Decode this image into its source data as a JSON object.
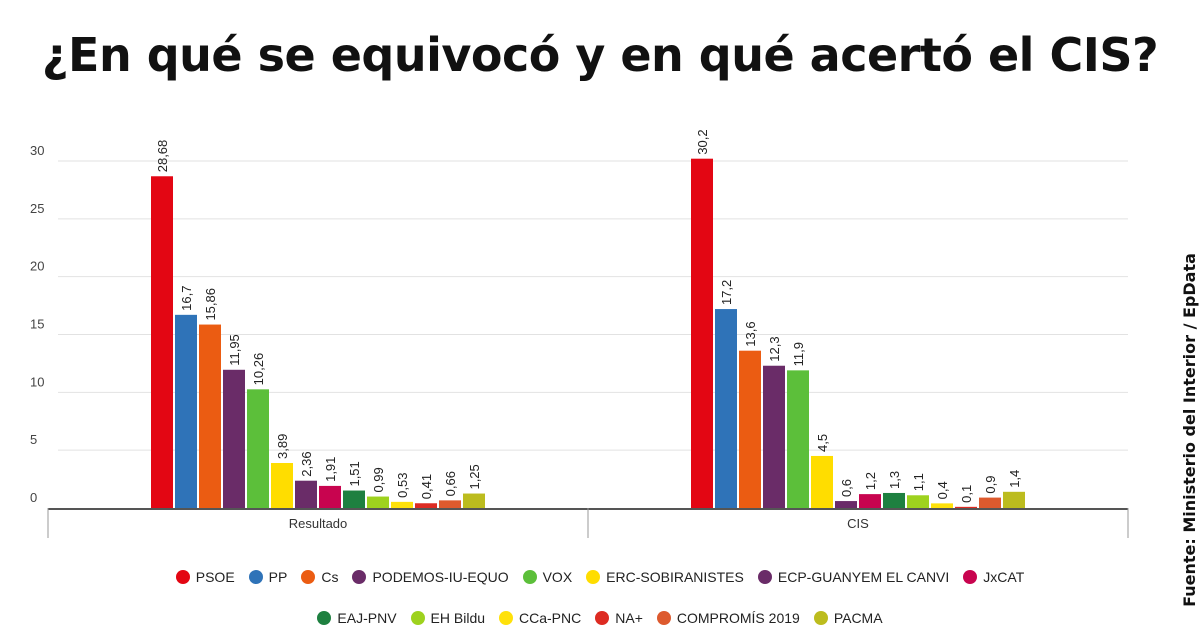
{
  "title": "¿En qué se equivocó y en qué acertó el CIS?",
  "source": "Fuente: Ministerio del Interior / EpData",
  "chart_data": {
    "type": "bar",
    "title": "¿En qué se equivocó y en qué acertó el CIS?",
    "categories": [
      "Resultado",
      "CIS"
    ],
    "ylim": [
      0,
      30
    ],
    "yticks": [
      0,
      5,
      10,
      15,
      20,
      25,
      30
    ],
    "grid": true,
    "legend_position": "bottom",
    "series": [
      {
        "name": "PSOE",
        "color": "#e30613",
        "values": [
          28.68,
          30.2
        ],
        "labels": [
          "28,68",
          "30,2"
        ]
      },
      {
        "name": "PP",
        "color": "#2f73b8",
        "values": [
          16.7,
          17.2
        ],
        "labels": [
          "16,7",
          "17,2"
        ]
      },
      {
        "name": "Cs",
        "color": "#eb5c12",
        "values": [
          15.86,
          13.6
        ],
        "labels": [
          "15,86",
          "13,6"
        ]
      },
      {
        "name": "PODEMOS-IU-EQUO",
        "color": "#6a2c68",
        "values": [
          11.95,
          12.3
        ],
        "labels": [
          "11,95",
          "12,3"
        ]
      },
      {
        "name": "VOX",
        "color": "#5cbf3a",
        "values": [
          10.26,
          11.9
        ],
        "labels": [
          "10,26",
          "11,9"
        ]
      },
      {
        "name": "ERC-SOBIRANISTES",
        "color": "#ffdd00",
        "values": [
          3.89,
          4.5
        ],
        "labels": [
          "3,89",
          "4,5"
        ]
      },
      {
        "name": "ECP-GUANYEM EL CANVI",
        "color": "#6a2c68",
        "values": [
          2.36,
          0.6
        ],
        "labels": [
          "2,36",
          "0,6"
        ]
      },
      {
        "name": "JxCAT",
        "color": "#c8044f",
        "values": [
          1.91,
          1.2
        ],
        "labels": [
          "1,91",
          "1,2"
        ]
      },
      {
        "name": "EAJ-PNV",
        "color": "#1e8040",
        "values": [
          1.51,
          1.3
        ],
        "labels": [
          "1,51",
          "1,3"
        ]
      },
      {
        "name": "EH Bildu",
        "color": "#9ed21e",
        "values": [
          0.99,
          1.1
        ],
        "labels": [
          "0,99",
          "1,1"
        ]
      },
      {
        "name": "CCa-PNC",
        "color": "#ffe10a",
        "values": [
          0.53,
          0.4
        ],
        "labels": [
          "0,53",
          "0,4"
        ]
      },
      {
        "name": "NA+",
        "color": "#dd2b22",
        "values": [
          0.41,
          0.1
        ],
        "labels": [
          "0,41",
          "0,1"
        ]
      },
      {
        "name": "COMPROMÍS 2019",
        "color": "#dd5a2e",
        "values": [
          0.66,
          0.9
        ],
        "labels": [
          "0,66",
          "0,9"
        ]
      },
      {
        "name": "PACMA",
        "color": "#bcbc1e",
        "values": [
          1.25,
          1.4
        ],
        "labels": [
          "1,25",
          "1,4"
        ]
      }
    ]
  }
}
